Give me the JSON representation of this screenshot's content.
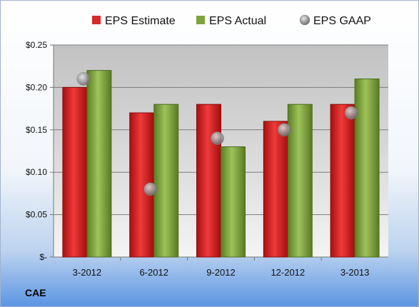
{
  "chart_data": {
    "type": "bar",
    "categories": [
      "3-2012",
      "6-2012",
      "9-2012",
      "12-2012",
      "3-2013"
    ],
    "series": [
      {
        "name": "EPS Estimate",
        "values": [
          0.2,
          0.17,
          0.18,
          0.16,
          0.18
        ],
        "color": "#d62a2a",
        "kind": "bar"
      },
      {
        "name": "EPS Actual",
        "values": [
          0.22,
          0.18,
          0.13,
          0.18,
          0.21
        ],
        "color": "#7fa33f",
        "kind": "bar"
      },
      {
        "name": "EPS GAAP",
        "values": [
          0.21,
          0.08,
          0.14,
          0.15,
          0.17
        ],
        "color": "#9a9a9a",
        "kind": "marker"
      }
    ],
    "ylim": [
      0,
      0.25
    ],
    "yticks": [
      0,
      0.05,
      0.1,
      0.15,
      0.2,
      0.25
    ],
    "ytick_labels": [
      "$-",
      "$0.05",
      "$0.10",
      "$0.15",
      "$0.20",
      "$0.25"
    ],
    "grid": true,
    "legend_position": "top"
  },
  "ticker": "CAE"
}
